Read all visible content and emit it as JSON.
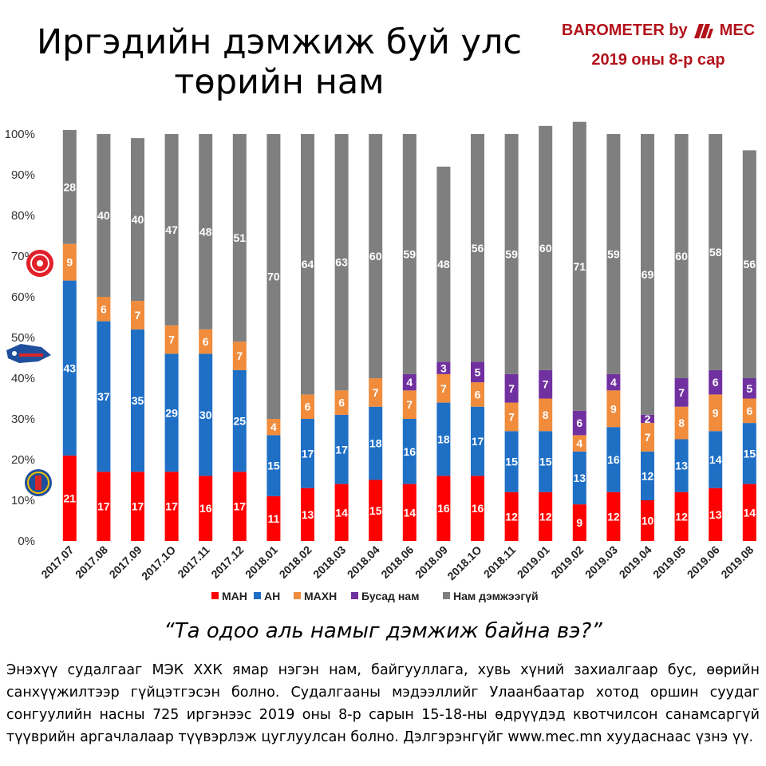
{
  "header": {
    "title_line1": "Иргэдийн дэмжиж буй улс",
    "title_line2": "төрийн нам",
    "brand_prefix": "BAROMETER by",
    "brand_name": "MEC",
    "date": "2019 оны 8-р сар"
  },
  "question": "“Та одоо аль намыг дэмжиж байна вэ?”",
  "note": "Энэхүү судалгааг МЭК ХХК ямар нэгэн нам, байгууллага, хувь хүний захиалгаар бус, өөрийн санхүүжилтээр гүйцэтгэсэн болно. Судалгааны мэдээллийг Улаанбаатар хотод оршин суудаг сонгуулийн насны 725 иргэнээс 2019 оны 8-р сарын 15-18-ны өдрүүдэд квотчилсон санамсаргүй түүврийн аргачлалаар түүвэрлэж цуглуулсан болно. Дэлгэрэнгүйг www.mec.mn хуудаснаас үзнэ үү.",
  "chart_data": {
    "type": "bar",
    "stacked": true,
    "title": "Иргэдийн дэмжиж буй улс төрийн нам",
    "ylim": [
      0,
      100
    ],
    "y_ticks": [
      "0%",
      "10%",
      "20%",
      "30%",
      "40%",
      "50%",
      "60%",
      "70%",
      "80%",
      "90%",
      "100%"
    ],
    "categories": [
      "2017.07",
      "2017.08",
      "2017.09",
      "2017.1O",
      "2017.11",
      "2017.12",
      "2018.01",
      "2018.02",
      "2018.03",
      "2018.04",
      "2018.06",
      "2018.09",
      "2018.1O",
      "2018.11",
      "2019.01",
      "2019.02",
      "2019.03",
      "2019.04",
      "2019.05",
      "2019.06",
      "2019.08"
    ],
    "legend_position": "bottom",
    "series": [
      {
        "name": "МАН",
        "color": "#ff0000",
        "values": [
          21,
          17,
          17,
          17,
          16,
          17,
          11,
          13,
          14,
          15,
          14,
          16,
          16,
          12,
          12,
          9,
          12,
          10,
          12,
          13,
          14
        ]
      },
      {
        "name": "АН",
        "color": "#1f6fc5",
        "values": [
          43,
          37,
          35,
          29,
          30,
          25,
          15,
          17,
          17,
          18,
          16,
          18,
          17,
          15,
          15,
          13,
          16,
          12,
          13,
          14,
          15
        ]
      },
      {
        "name": "МАХН",
        "color": "#f08c3c",
        "values": [
          9,
          6,
          7,
          7,
          6,
          7,
          4,
          6,
          6,
          7,
          7,
          7,
          6,
          7,
          8,
          4,
          9,
          7,
          8,
          9,
          6
        ]
      },
      {
        "name": "Бусад нам",
        "color": "#7030a0",
        "values": [
          null,
          null,
          null,
          null,
          null,
          null,
          null,
          null,
          null,
          null,
          4,
          3,
          5,
          7,
          7,
          6,
          4,
          2,
          7,
          6,
          5
        ]
      },
      {
        "name": "Нам дэмжээгүй",
        "color": "#7f7f7f",
        "values": [
          28,
          40,
          40,
          47,
          48,
          51,
          70,
          64,
          63,
          60,
          59,
          48,
          56,
          59,
          60,
          71,
          59,
          69,
          60,
          58,
          56
        ]
      }
    ]
  }
}
